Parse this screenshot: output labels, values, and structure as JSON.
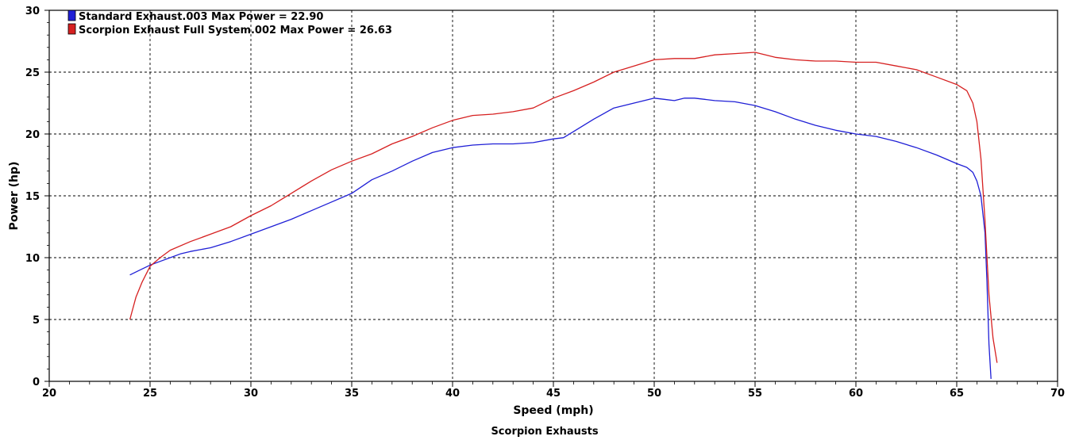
{
  "chart_data": {
    "type": "line",
    "xlabel": "Speed (mph)",
    "ylabel": "Power (hp)",
    "footer": "Scorpion Exhausts",
    "xlim": [
      20,
      70
    ],
    "ylim": [
      0,
      30
    ],
    "xticks": [
      20,
      25,
      30,
      35,
      40,
      45,
      50,
      55,
      60,
      65,
      70
    ],
    "yticks": [
      0,
      5,
      10,
      15,
      20,
      25,
      30
    ],
    "grid": true,
    "legend_position": "top-left",
    "series": [
      {
        "name": "Standard Exhaust.003 Max Power = 22.90",
        "color": "#1f1fd6",
        "x": [
          24,
          24.5,
          25,
          25.5,
          26,
          26.5,
          27,
          28,
          29,
          30,
          31,
          32,
          33,
          34,
          35,
          36,
          37,
          38,
          39,
          40,
          41,
          42,
          43,
          44,
          45,
          45.5,
          46,
          47,
          48,
          49,
          50,
          50.5,
          51,
          51.5,
          52,
          52.5,
          53,
          54,
          55,
          56,
          57,
          58,
          59,
          60,
          61,
          62,
          63,
          64,
          65,
          65.5,
          65.8,
          66,
          66.2,
          66.4,
          66.5,
          66.6,
          66.7
        ],
        "y": [
          8.6,
          9.0,
          9.4,
          9.7,
          10.0,
          10.3,
          10.5,
          10.8,
          11.3,
          11.9,
          12.5,
          13.1,
          13.8,
          14.5,
          15.2,
          16.3,
          17.0,
          17.8,
          18.5,
          18.9,
          19.1,
          19.2,
          19.2,
          19.3,
          19.6,
          19.7,
          20.2,
          21.2,
          22.1,
          22.5,
          22.9,
          22.8,
          22.7,
          22.9,
          22.9,
          22.8,
          22.7,
          22.6,
          22.3,
          21.8,
          21.2,
          20.7,
          20.3,
          20.0,
          19.8,
          19.4,
          18.9,
          18.3,
          17.6,
          17.3,
          16.9,
          16.2,
          15.0,
          12.0,
          8.0,
          3.0,
          0.2
        ]
      },
      {
        "name": "Scorpion Exhaust Full System.002 Max Power = 26.63",
        "color": "#d62020",
        "x": [
          24,
          24.3,
          24.6,
          25,
          25.5,
          26,
          27,
          28,
          29,
          30,
          31,
          32,
          33,
          34,
          35,
          36,
          37,
          38,
          39,
          40,
          41,
          42,
          43,
          44,
          45,
          46,
          47,
          48,
          49,
          50,
          51,
          52,
          53,
          54,
          55,
          56,
          57,
          58,
          59,
          60,
          61,
          62,
          63,
          64,
          65,
          65.5,
          65.8,
          66,
          66.2,
          66.4,
          66.6,
          66.8,
          67
        ],
        "y": [
          5.0,
          6.8,
          8.0,
          9.3,
          10.0,
          10.6,
          11.3,
          11.9,
          12.5,
          13.4,
          14.2,
          15.2,
          16.2,
          17.1,
          17.8,
          18.4,
          19.2,
          19.8,
          20.5,
          21.1,
          21.5,
          21.6,
          21.8,
          22.1,
          22.9,
          23.5,
          24.2,
          25.0,
          25.5,
          26.0,
          26.1,
          26.1,
          26.4,
          26.5,
          26.6,
          26.2,
          26.0,
          25.9,
          25.9,
          25.8,
          25.8,
          25.5,
          25.2,
          24.6,
          24.0,
          23.5,
          22.5,
          21.0,
          18.0,
          13.0,
          7.0,
          3.5,
          1.5
        ]
      }
    ]
  }
}
